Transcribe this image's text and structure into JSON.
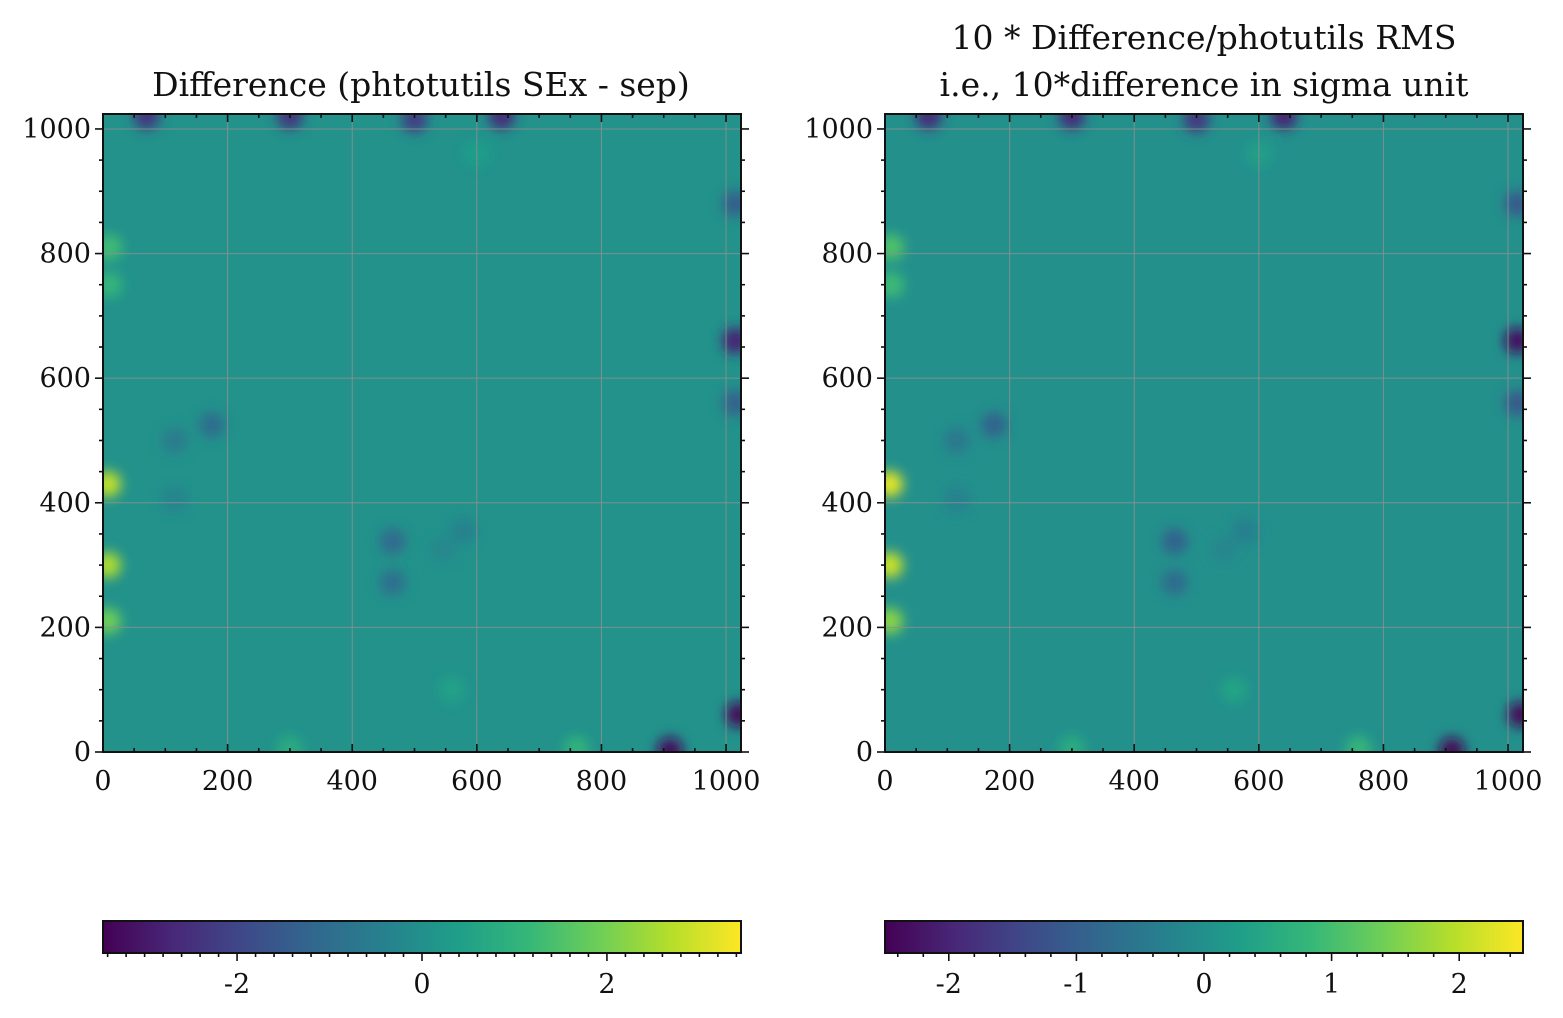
{
  "figure": {
    "colormap": "viridis",
    "colormap_stops": [
      "#440154",
      "#482878",
      "#3e4a89",
      "#31688e",
      "#26828e",
      "#1f9e89",
      "#35b779",
      "#6ece58",
      "#b5de2b",
      "#fde725"
    ],
    "grid_color": "#8f8f8f"
  },
  "chart_data": [
    {
      "type": "heatmap",
      "title_lines": [
        "Difference (phtotutils SEx - sep)"
      ],
      "xlabel": "",
      "ylabel": "",
      "xlim": [
        0,
        1024
      ],
      "ylim": [
        0,
        1024
      ],
      "x_ticks": [
        0,
        200,
        400,
        600,
        800,
        1000
      ],
      "y_ticks": [
        0,
        200,
        400,
        600,
        800,
        1000
      ],
      "x_tick_labels": [
        "0",
        "200",
        "400",
        "600",
        "800",
        "1000"
      ],
      "y_tick_labels": [
        "0",
        "200",
        "400",
        "600",
        "800",
        "1000"
      ],
      "grid": true,
      "colorbar": {
        "orientation": "horizontal",
        "placement": "bottom",
        "range": [
          -3.45,
          3.45
        ],
        "ticks": [
          -2,
          0,
          2
        ],
        "tick_labels": [
          "-2",
          "0",
          "2"
        ]
      },
      "background_value": 0.05,
      "features": [
        {
          "x": 115,
          "y": 500,
          "value": -0.6
        },
        {
          "x": 175,
          "y": 525,
          "value": -1.0
        },
        {
          "x": 115,
          "y": 405,
          "value": -0.35
        },
        {
          "x": 465,
          "y": 338,
          "value": -1.1
        },
        {
          "x": 465,
          "y": 272,
          "value": -0.9
        },
        {
          "x": 578,
          "y": 355,
          "value": -0.4
        },
        {
          "x": 545,
          "y": 325,
          "value": -0.25
        },
        {
          "x": 8,
          "y": 430,
          "value": 2.8
        },
        {
          "x": 8,
          "y": 300,
          "value": 2.6
        },
        {
          "x": 8,
          "y": 210,
          "value": 1.9
        },
        {
          "x": 10,
          "y": 810,
          "value": 1.3
        },
        {
          "x": 10,
          "y": 750,
          "value": 1.1
        },
        {
          "x": 1015,
          "y": 660,
          "value": -2.8
        },
        {
          "x": 1015,
          "y": 560,
          "value": -1.3
        },
        {
          "x": 1015,
          "y": 880,
          "value": -1.4
        },
        {
          "x": 1020,
          "y": 60,
          "value": -3.3
        },
        {
          "x": 910,
          "y": 3,
          "value": -3.2
        },
        {
          "x": 640,
          "y": 1020,
          "value": -2.6
        },
        {
          "x": 300,
          "y": 1020,
          "value": -2.4
        },
        {
          "x": 70,
          "y": 1020,
          "value": -2.4
        },
        {
          "x": 500,
          "y": 1015,
          "value": -2.2
        },
        {
          "x": 760,
          "y": 5,
          "value": 1.0
        },
        {
          "x": 300,
          "y": 5,
          "value": 0.8
        },
        {
          "x": 560,
          "y": 100,
          "value": 0.5
        },
        {
          "x": 600,
          "y": 960,
          "value": 0.4
        }
      ]
    },
    {
      "type": "heatmap",
      "title_lines": [
        "10 * Difference/photutils RMS",
        "i.e., 10*difference in sigma unit"
      ],
      "xlabel": "",
      "ylabel": "",
      "xlim": [
        0,
        1024
      ],
      "ylim": [
        0,
        1024
      ],
      "x_ticks": [
        0,
        200,
        400,
        600,
        800,
        1000
      ],
      "y_ticks": [
        0,
        200,
        400,
        600,
        800,
        1000
      ],
      "x_tick_labels": [
        "0",
        "200",
        "400",
        "600",
        "800",
        "1000"
      ],
      "y_tick_labels": [
        "0",
        "200",
        "400",
        "600",
        "800",
        "1000"
      ],
      "grid": true,
      "colorbar": {
        "orientation": "horizontal",
        "placement": "bottom",
        "range": [
          -2.5,
          2.5
        ],
        "ticks": [
          -2,
          -1,
          0,
          1,
          2
        ],
        "tick_labels": [
          "-2",
          "-1",
          "0",
          "1",
          "2"
        ]
      },
      "background_value": 0.0,
      "features": [
        {
          "x": 115,
          "y": 500,
          "value": -0.5
        },
        {
          "x": 175,
          "y": 525,
          "value": -0.9
        },
        {
          "x": 115,
          "y": 405,
          "value": -0.3
        },
        {
          "x": 465,
          "y": 338,
          "value": -0.9
        },
        {
          "x": 465,
          "y": 272,
          "value": -0.75
        },
        {
          "x": 578,
          "y": 355,
          "value": -0.35
        },
        {
          "x": 545,
          "y": 325,
          "value": -0.2
        },
        {
          "x": 8,
          "y": 430,
          "value": 2.3
        },
        {
          "x": 8,
          "y": 300,
          "value": 2.1
        },
        {
          "x": 8,
          "y": 210,
          "value": 1.6
        },
        {
          "x": 10,
          "y": 810,
          "value": 1.1
        },
        {
          "x": 10,
          "y": 750,
          "value": 0.9
        },
        {
          "x": 1015,
          "y": 660,
          "value": -2.3
        },
        {
          "x": 1015,
          "y": 560,
          "value": -1.1
        },
        {
          "x": 1015,
          "y": 880,
          "value": -1.1
        },
        {
          "x": 1020,
          "y": 60,
          "value": -2.4
        },
        {
          "x": 910,
          "y": 3,
          "value": -2.4
        },
        {
          "x": 640,
          "y": 1020,
          "value": -2.0
        },
        {
          "x": 300,
          "y": 1020,
          "value": -1.9
        },
        {
          "x": 70,
          "y": 1020,
          "value": -1.9
        },
        {
          "x": 500,
          "y": 1015,
          "value": -1.7
        },
        {
          "x": 760,
          "y": 5,
          "value": 0.8
        },
        {
          "x": 300,
          "y": 5,
          "value": 0.6
        },
        {
          "x": 560,
          "y": 100,
          "value": 0.4
        },
        {
          "x": 600,
          "y": 960,
          "value": 0.3
        }
      ]
    }
  ]
}
